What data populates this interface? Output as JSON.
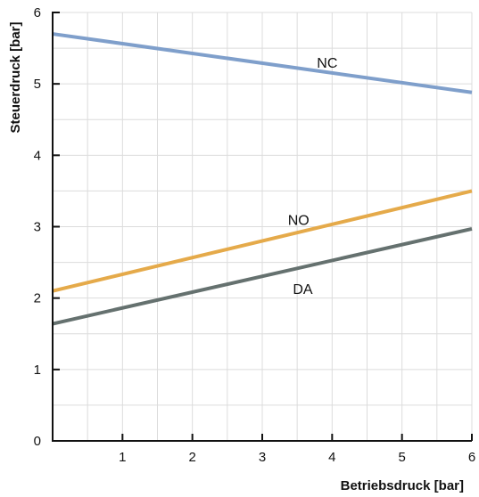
{
  "chart_data": {
    "type": "line",
    "xlabel": "Betriebsdruck [bar]",
    "ylabel": "Steuerdruck [bar]",
    "xlim": [
      0,
      6
    ],
    "ylim": [
      0,
      6
    ],
    "x_ticks": [
      0,
      1,
      2,
      3,
      4,
      5,
      6
    ],
    "y_ticks": [
      0,
      1,
      2,
      3,
      4,
      5,
      6
    ],
    "grid": true,
    "series": [
      {
        "name": "NC",
        "x": [
          0,
          6
        ],
        "y": [
          5.7,
          4.88
        ],
        "color": "#7f9fcb",
        "label_at": [
          3.93,
          5.3
        ]
      },
      {
        "name": "NO",
        "x": [
          0,
          6
        ],
        "y": [
          2.1,
          3.5
        ],
        "color": "#e5aa4a",
        "label_at": [
          3.52,
          3.1
        ]
      },
      {
        "name": "DA",
        "x": [
          0,
          6
        ],
        "y": [
          1.64,
          2.97
        ],
        "color": "#65716f",
        "label_at": [
          3.58,
          2.13
        ]
      }
    ]
  }
}
